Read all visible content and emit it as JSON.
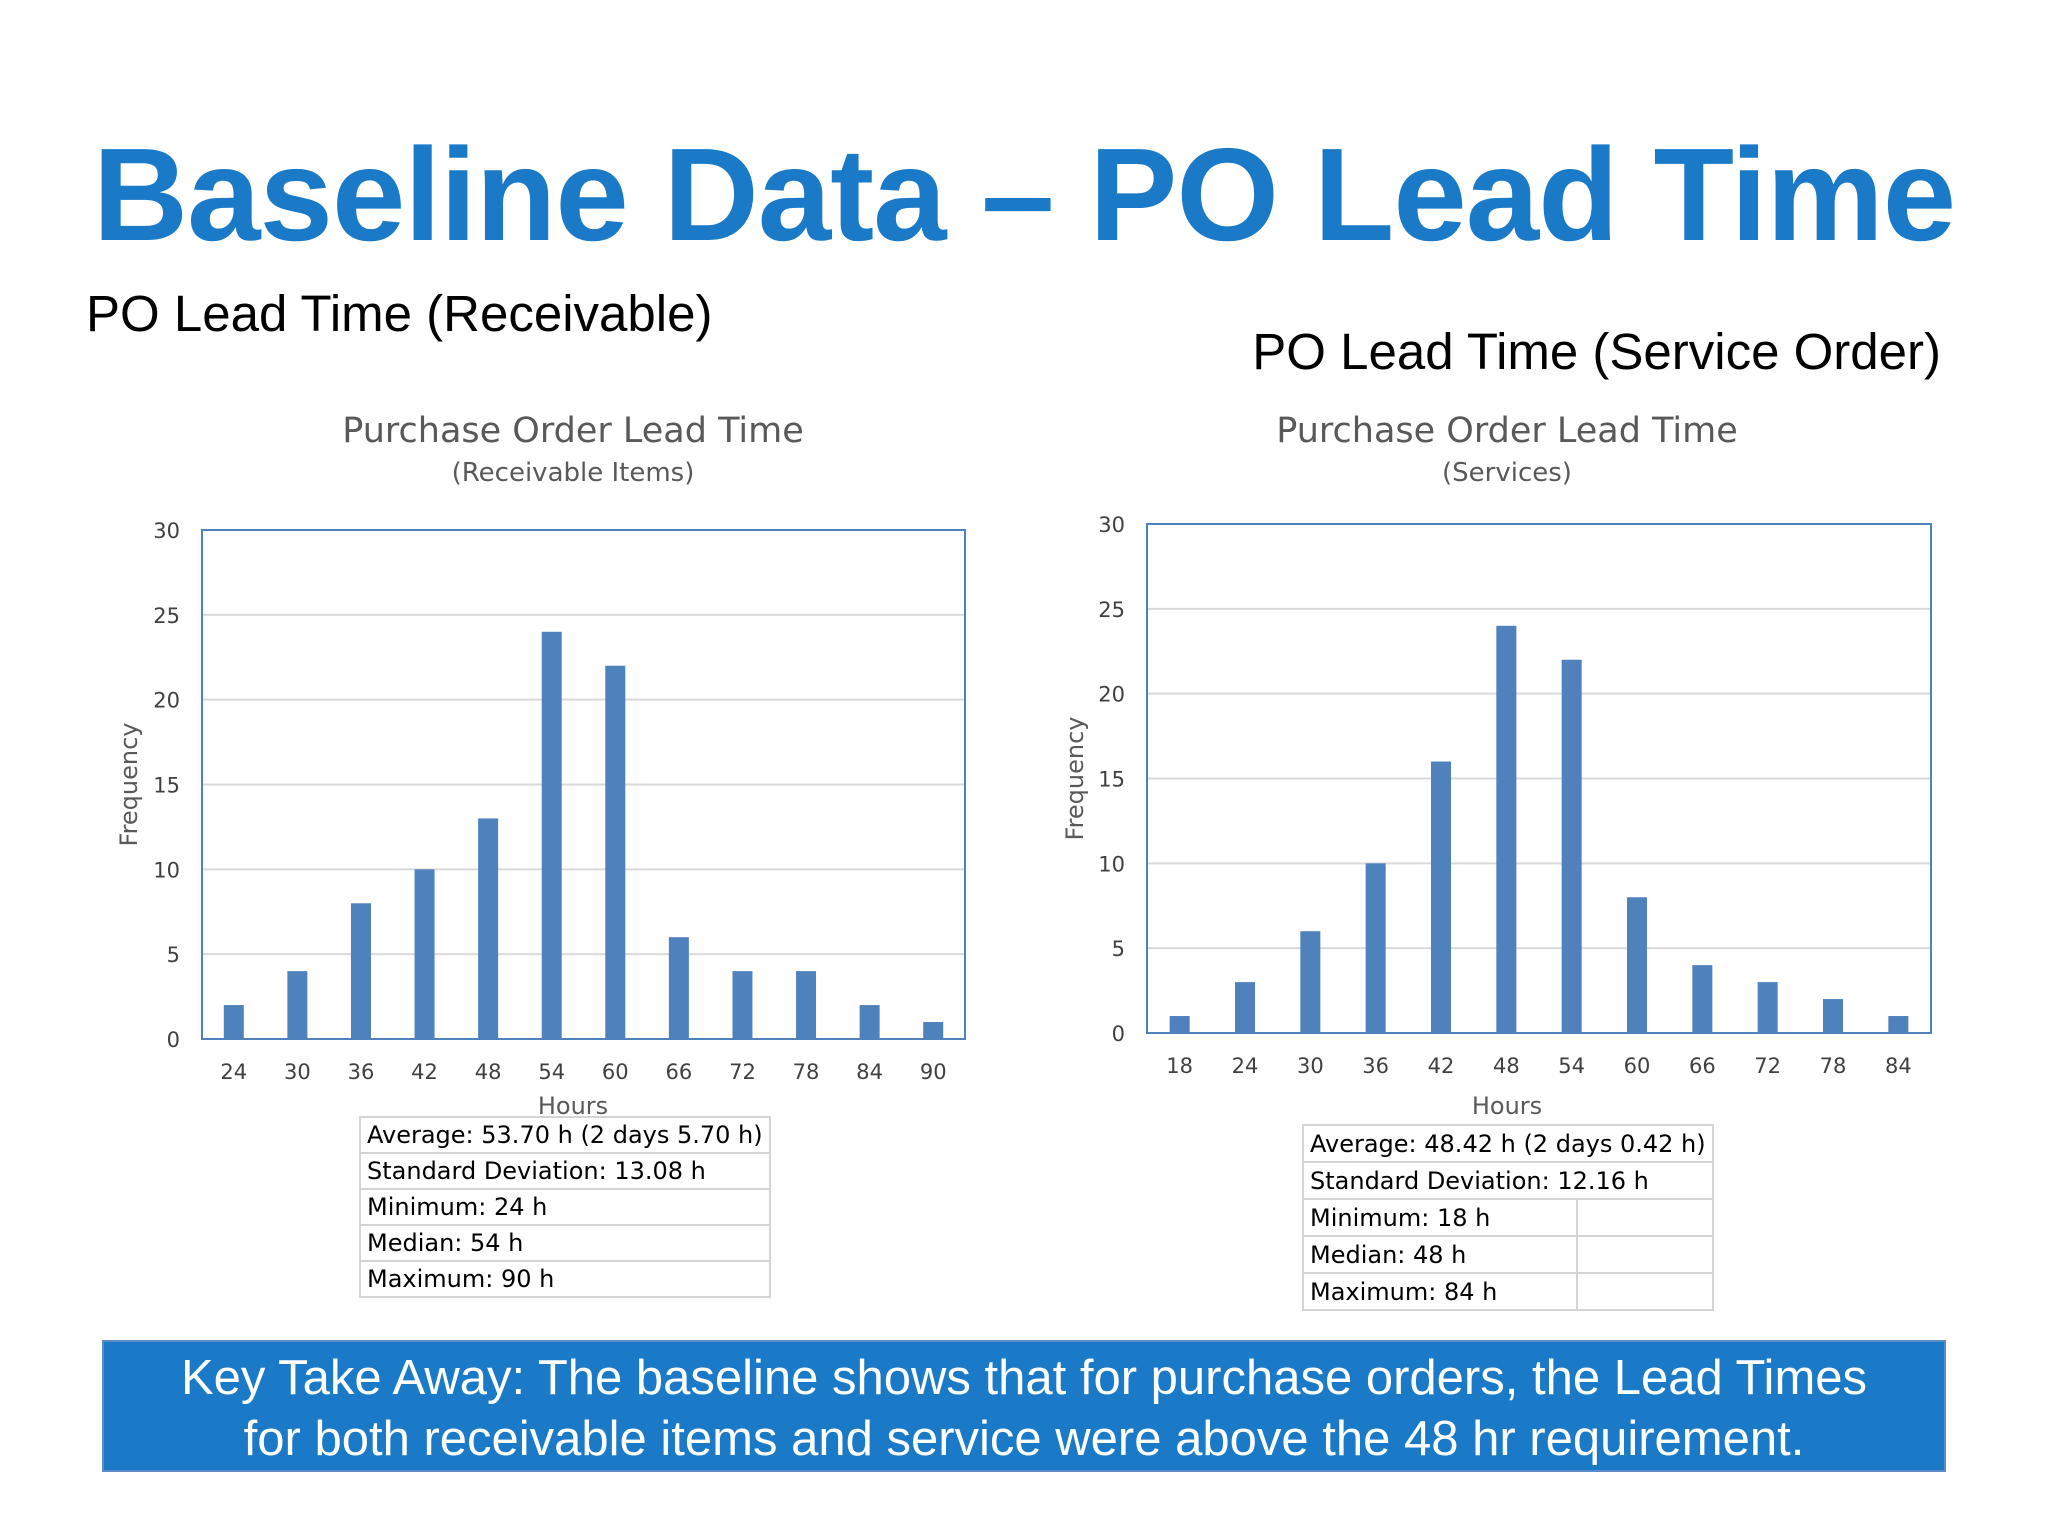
{
  "slide": {
    "title": "Baseline Data – PO Lead Time",
    "label_left": "PO Lead Time (Receivable)",
    "label_right": "PO Lead Time (Service Order)",
    "takeaway_line1": "Key Take Away: The baseline shows that for purchase orders, the Lead Times",
    "takeaway_line2": "for both receivable items and service were above the 48 hr requirement."
  },
  "colors": {
    "title": "#1a7ac8",
    "bar": "#4f81bd",
    "takeaway_bg": "#1a7ac8"
  },
  "chart_data": [
    {
      "type": "bar",
      "title": "Purchase Order Lead Time",
      "subtitle": "(Receivable Items)",
      "xlabel": "Hours",
      "ylabel": "Frequency",
      "categories": [
        "24",
        "30",
        "36",
        "42",
        "48",
        "54",
        "60",
        "66",
        "72",
        "78",
        "84",
        "90"
      ],
      "values": [
        2,
        4,
        8,
        10,
        13,
        24,
        22,
        6,
        4,
        4,
        2,
        1
      ],
      "ylim": [
        0,
        30
      ],
      "yticks": [
        0,
        5,
        10,
        15,
        20,
        25,
        30
      ],
      "grid": true,
      "stats": [
        "Average: 53.70 h (2 days 5.70 h)",
        "Standard Deviation: 13.08 h",
        "Minimum: 24 h",
        "Median: 54 h",
        "Maximum: 90 h"
      ]
    },
    {
      "type": "bar",
      "title": "Purchase Order Lead Time",
      "subtitle": "(Services)",
      "xlabel": "Hours",
      "ylabel": "Frequency",
      "categories": [
        "18",
        "24",
        "30",
        "36",
        "42",
        "48",
        "54",
        "60",
        "66",
        "72",
        "78",
        "84"
      ],
      "values": [
        1,
        3,
        6,
        10,
        16,
        24,
        22,
        8,
        4,
        3,
        2,
        1
      ],
      "ylim": [
        0,
        30
      ],
      "yticks": [
        0,
        5,
        10,
        15,
        20,
        25,
        30
      ],
      "grid": true,
      "stats": [
        "Average: 48.42 h (2 days 0.42 h)",
        "Standard Deviation: 12.16 h",
        "Minimum: 18 h",
        "Median: 48 h",
        "Maximum: 84 h"
      ]
    }
  ]
}
